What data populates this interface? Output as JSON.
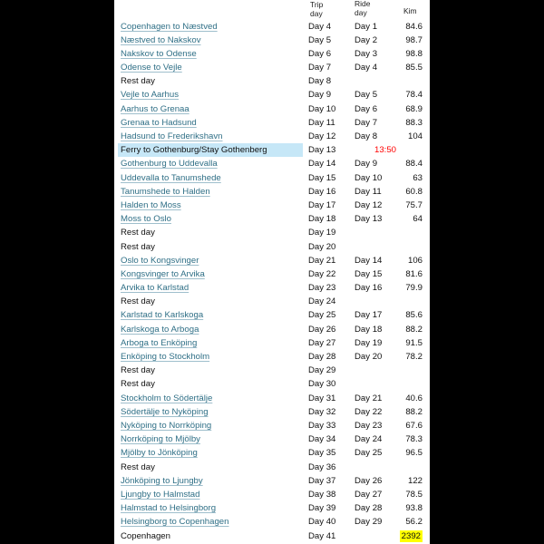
{
  "header": {
    "trip_day": "Trip\nday",
    "trip_line1": "Trip",
    "trip_line2": "day",
    "ride_line1": "Ride",
    "ride_line2": "day",
    "km": "Kim"
  },
  "colors": {
    "link": "#2f6f86",
    "highlight_row": "#c6e7f7",
    "total_highlight": "#ffff00",
    "ferry_time": "#ff0000"
  },
  "rows": [
    {
      "route": "Copenhagen to Næstved",
      "link": true,
      "trip": "Day 4",
      "ride": "Day 1",
      "km": "84.6"
    },
    {
      "route": "Næstved to Nakskov",
      "link": true,
      "trip": "Day 5",
      "ride": "Day 2",
      "km": "98.7"
    },
    {
      "route": "Nakskov to Odense",
      "link": true,
      "trip": "Day 6",
      "ride": "Day 3",
      "km": "98.8"
    },
    {
      "route": "Odense to Vejle",
      "link": true,
      "trip": "Day 7",
      "ride": "Day 4",
      "km": "85.5"
    },
    {
      "route": "Rest day",
      "link": false,
      "trip": "Day 8",
      "ride": "",
      "km": ""
    },
    {
      "route": "Vejle to Aarhus",
      "link": true,
      "trip": "Day 9",
      "ride": "Day 5",
      "km": "78.4"
    },
    {
      "route": "Aarhus to Grenaa",
      "link": true,
      "trip": "Day 10",
      "ride": "Day 6",
      "km": "68.9"
    },
    {
      "route": "Grenaa to Hadsund",
      "link": true,
      "trip": "Day 11",
      "ride": "Day 7",
      "km": "88.3"
    },
    {
      "route": "Hadsund to Frederikshavn",
      "link": true,
      "trip": "Day 12",
      "ride": "Day 8",
      "km": "104"
    },
    {
      "route": "Ferry to Gothenburg/Stay Gothenberg",
      "link": false,
      "highlight": true,
      "trip": "Day 13",
      "ride": "",
      "km": "",
      "note": "13:50"
    },
    {
      "route": "Gothenburg to Uddevalla",
      "link": true,
      "trip": "Day 14",
      "ride": "Day 9",
      "km": "88.4"
    },
    {
      "route": "Uddevalla to Tanumshede",
      "link": true,
      "trip": "Day 15",
      "ride": "Day 10",
      "km": "63"
    },
    {
      "route": "Tanumshede to Halden",
      "link": true,
      "trip": "Day 16",
      "ride": "Day 11",
      "km": "60.8"
    },
    {
      "route": "Halden to Moss",
      "link": true,
      "trip": "Day 17",
      "ride": "Day 12",
      "km": "75.7"
    },
    {
      "route": "Moss to Oslo",
      "link": true,
      "trip": "Day 18",
      "ride": "Day 13",
      "km": "64"
    },
    {
      "route": "Rest day",
      "link": false,
      "trip": "Day 19",
      "ride": "",
      "km": ""
    },
    {
      "route": "Rest day",
      "link": false,
      "trip": "Day 20",
      "ride": "",
      "km": ""
    },
    {
      "route": "Oslo to Kongsvinger",
      "link": true,
      "trip": "Day 21",
      "ride": "Day 14",
      "km": "106"
    },
    {
      "route": "Kongsvinger to Arvika",
      "link": true,
      "trip": "Day 22",
      "ride": "Day 15",
      "km": "81.6"
    },
    {
      "route": "Arvika to Karlstad",
      "link": true,
      "trip": "Day 23",
      "ride": "Day 16",
      "km": "79.9"
    },
    {
      "route": "Rest day",
      "link": false,
      "trip": "Day 24",
      "ride": "",
      "km": ""
    },
    {
      "route": "Karlstad to Karlskoga",
      "link": true,
      "trip": "Day 25",
      "ride": "Day 17",
      "km": "85.6"
    },
    {
      "route": "Karlskoga to Arboga",
      "link": true,
      "trip": "Day 26",
      "ride": "Day 18",
      "km": "88.2"
    },
    {
      "route": "Arboga to Enköping",
      "link": true,
      "trip": "Day 27",
      "ride": "Day 19",
      "km": "91.5"
    },
    {
      "route": "Enköping to Stockholm",
      "link": true,
      "trip": "Day 28",
      "ride": "Day 20",
      "km": "78.2"
    },
    {
      "route": "Rest day",
      "link": false,
      "trip": "Day 29",
      "ride": "",
      "km": ""
    },
    {
      "route": "Rest day",
      "link": false,
      "trip": "Day 30",
      "ride": "",
      "km": ""
    },
    {
      "route": "Stockholm to Södertälje",
      "link": true,
      "trip": "Day 31",
      "ride": "Day 21",
      "km": "40.6"
    },
    {
      "route": "Södertälje to Nyköping",
      "link": true,
      "trip": "Day 32",
      "ride": "Day 22",
      "km": "88.2"
    },
    {
      "route": "Nyköping to Norrköping",
      "link": true,
      "trip": "Day 33",
      "ride": "Day 23",
      "km": "67.6"
    },
    {
      "route": "Norrköping to Mjölby",
      "link": true,
      "trip": "Day 34",
      "ride": "Day 24",
      "km": "78.3"
    },
    {
      "route": "Mjölby to Jönköping",
      "link": true,
      "trip": "Day 35",
      "ride": "Day 25",
      "km": "96.5"
    },
    {
      "route": "Rest day",
      "link": false,
      "trip": "Day 36",
      "ride": "",
      "km": ""
    },
    {
      "route": "Jönköping to Ljungby",
      "link": true,
      "trip": "Day 37",
      "ride": "Day 26",
      "km": "122"
    },
    {
      "route": "Ljungby to Halmstad",
      "link": true,
      "trip": "Day 38",
      "ride": "Day 27",
      "km": "78.5"
    },
    {
      "route": "Halmstad to Helsingborg",
      "link": true,
      "trip": "Day 39",
      "ride": "Day 28",
      "km": "93.8"
    },
    {
      "route": "Helsingborg to Copenhagen",
      "link": true,
      "trip": "Day 40",
      "ride": "Day 29",
      "km": "56.2"
    },
    {
      "route": "Copenhagen",
      "link": false,
      "trip": "Day 41",
      "ride": "",
      "km": "2392",
      "total": true
    }
  ]
}
